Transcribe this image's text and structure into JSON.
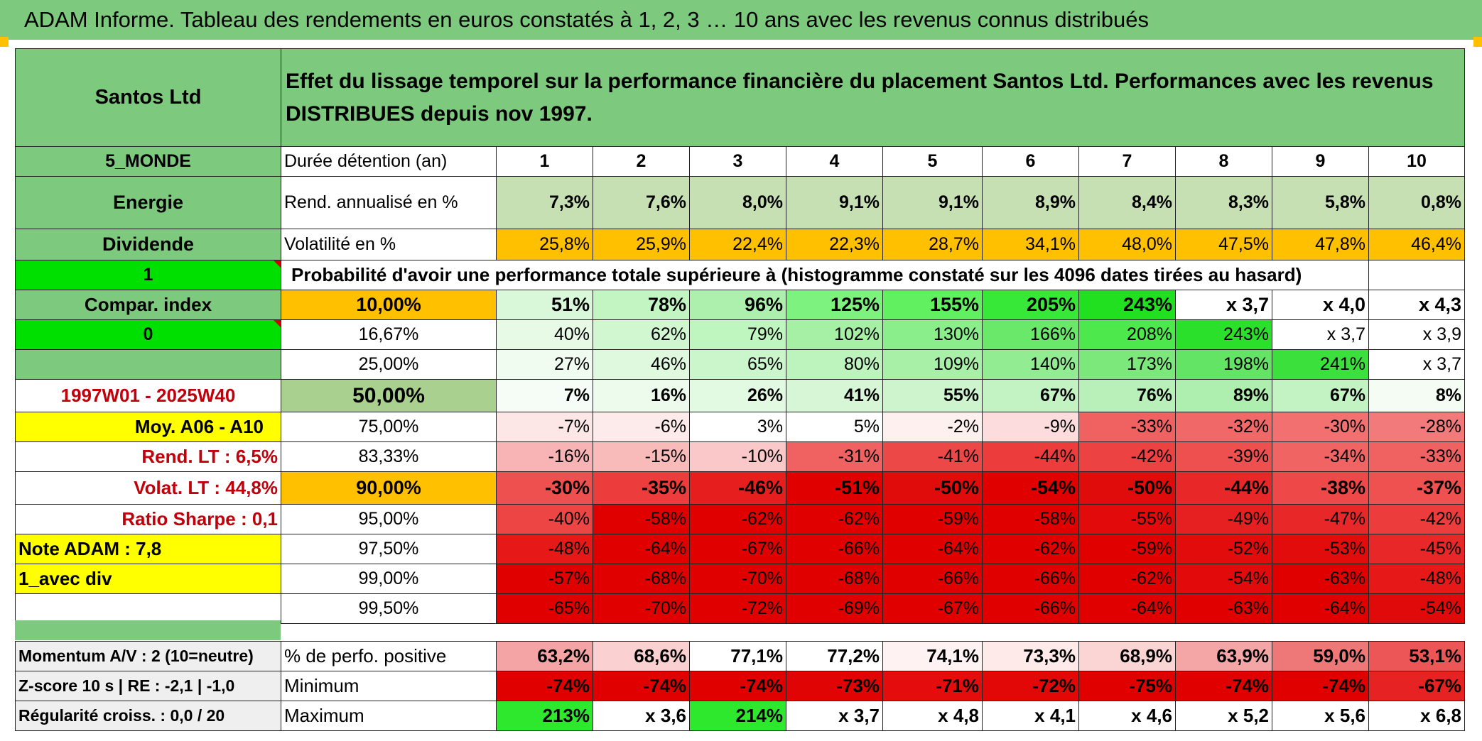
{
  "title": "ADAM Informe. Tableau des rendements en euros constatés à 1, 2, 3 … 10 ans avec les revenus connus distribués",
  "colors": {
    "header_green": "#7dc97d",
    "orange": "#ffc000",
    "yellow": "#ffff00",
    "bright_green": "#00e000",
    "label_red": "#c0000a"
  },
  "left": {
    "name": "Santos Ltd",
    "region": "5_MONDE",
    "sector": "Energie",
    "type": "Dividende",
    "flag1": "1",
    "compar": "Compar. index",
    "flag2": "0",
    "period": "1997W01 - 2025W40",
    "moy": "Moy. A06 - A10",
    "rend_lt": "Rend. LT :   6,5%",
    "volat_lt": "Volat. LT :   44,8%",
    "sharpe": "Ratio Sharpe :   0,1",
    "note": "Note ADAM : 7,8",
    "div": "1_avec div"
  },
  "header_text": "Effet du lissage temporel sur la performance financière du placement Santos Ltd. Performances avec les revenus DISTRIBUES depuis nov 1997.",
  "duree_label": "Durée détention (an)",
  "years": [
    "1",
    "2",
    "3",
    "4",
    "5",
    "6",
    "7",
    "8",
    "9",
    "10"
  ],
  "rend_label": "Rend. annualisé en %",
  "rend": [
    "7,3%",
    "7,6%",
    "8,0%",
    "9,1%",
    "9,1%",
    "8,9%",
    "8,4%",
    "8,3%",
    "5,8%",
    "0,8%"
  ],
  "vol_label": "Volatilité en %",
  "vol": [
    "25,8%",
    "25,9%",
    "22,4%",
    "22,3%",
    "28,7%",
    "34,1%",
    "48,0%",
    "47,5%",
    "47,8%",
    "46,4%"
  ],
  "prob_label": "Probabilité d'avoir une performance totale supérieure à (histogramme constaté sur les 4096 dates tirées au hasard)",
  "quantiles": [
    {
      "p": "10,00%",
      "v": [
        "51%",
        "78%",
        "96%",
        "125%",
        "155%",
        "205%",
        "243%",
        "x 3,7",
        "x 4,0",
        "x 4,3"
      ]
    },
    {
      "p": "16,67%",
      "v": [
        "40%",
        "62%",
        "79%",
        "102%",
        "130%",
        "166%",
        "208%",
        "243%",
        "x 3,7",
        "x 3,9"
      ]
    },
    {
      "p": "25,00%",
      "v": [
        "27%",
        "46%",
        "65%",
        "80%",
        "109%",
        "140%",
        "173%",
        "198%",
        "241%",
        "x 3,7"
      ]
    },
    {
      "p": "50,00%",
      "v": [
        "7%",
        "16%",
        "26%",
        "41%",
        "55%",
        "67%",
        "76%",
        "89%",
        "67%",
        "8%"
      ]
    },
    {
      "p": "75,00%",
      "v": [
        "-7%",
        "-6%",
        "3%",
        "5%",
        "-2%",
        "-9%",
        "-33%",
        "-32%",
        "-30%",
        "-28%"
      ]
    },
    {
      "p": "83,33%",
      "v": [
        "-16%",
        "-15%",
        "-10%",
        "-31%",
        "-41%",
        "-44%",
        "-42%",
        "-39%",
        "-34%",
        "-33%"
      ]
    },
    {
      "p": "90,00%",
      "v": [
        "-30%",
        "-35%",
        "-46%",
        "-51%",
        "-50%",
        "-54%",
        "-50%",
        "-44%",
        "-38%",
        "-37%"
      ]
    },
    {
      "p": "95,00%",
      "v": [
        "-40%",
        "-58%",
        "-62%",
        "-62%",
        "-59%",
        "-58%",
        "-55%",
        "-49%",
        "-47%",
        "-42%"
      ]
    },
    {
      "p": "97,50%",
      "v": [
        "-48%",
        "-64%",
        "-67%",
        "-66%",
        "-64%",
        "-62%",
        "-59%",
        "-52%",
        "-53%",
        "-45%"
      ]
    },
    {
      "p": "99,00%",
      "v": [
        "-57%",
        "-68%",
        "-70%",
        "-68%",
        "-66%",
        "-66%",
        "-62%",
        "-54%",
        "-63%",
        "-48%"
      ]
    },
    {
      "p": "99,50%",
      "v": [
        "-65%",
        "-70%",
        "-72%",
        "-69%",
        "-67%",
        "-66%",
        "-64%",
        "-63%",
        "-64%",
        "-54%"
      ]
    }
  ],
  "bottom": {
    "momentum": "Momentum A/V : 2 (10=neutre)",
    "zscore": "Z-score 10 s | RE : -2,1 | -1,0",
    "regularite": "Régularité croiss. : 0,0 / 20",
    "pos_label": "% de perfo. positive",
    "pos": [
      "63,2%",
      "68,6%",
      "77,1%",
      "77,2%",
      "74,1%",
      "73,3%",
      "68,9%",
      "63,9%",
      "59,0%",
      "53,1%"
    ],
    "min_label": "Minimum",
    "min": [
      "-74%",
      "-74%",
      "-74%",
      "-73%",
      "-71%",
      "-72%",
      "-75%",
      "-74%",
      "-74%",
      "-67%"
    ],
    "max_label": "Maximum",
    "max": [
      "213%",
      "x 3,6",
      "214%",
      "x 3,7",
      "x 4,8",
      "x 4,1",
      "x 4,6",
      "x 5,2",
      "x 5,6",
      "x 6,8"
    ]
  }
}
